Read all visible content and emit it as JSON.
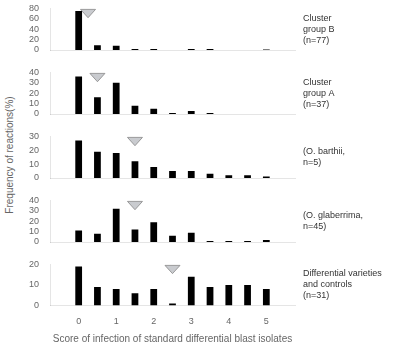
{
  "chart_data": [
    {
      "type": "bar",
      "x": [
        0,
        0.25,
        0.5,
        0.75,
        1,
        1.25,
        1.5,
        1.75,
        2,
        2.25,
        2.5,
        2.75,
        3,
        3.25,
        3.5,
        3.75,
        4,
        4.25,
        4.5,
        4.75,
        5
      ],
      "values": [
        75,
        0,
        9,
        0,
        8,
        0,
        2,
        0,
        2,
        0,
        0,
        0,
        2,
        0,
        2,
        0,
        0,
        0,
        0,
        0,
        1
      ],
      "color": "#000000",
      "mean": 0.25,
      "annotation": "Cluster\ngroup B\n(n=77)",
      "xlim": [
        -0.22,
        5.22
      ],
      "xticks": [
        0,
        1,
        2,
        3,
        4,
        5
      ],
      "ylim": [
        0,
        80
      ],
      "yticks": [
        0,
        20,
        40,
        60,
        80
      ],
      "grid": false,
      "tick_labels": "y"
    },
    {
      "type": "bar",
      "x": [
        0,
        0.25,
        0.5,
        0.75,
        1,
        1.25,
        1.5,
        1.75,
        2,
        2.25,
        2.5,
        2.75,
        3,
        3.25,
        3.5,
        3.75,
        4,
        4.25,
        4.5,
        4.75,
        5
      ],
      "values": [
        36,
        0,
        16,
        0,
        30,
        0,
        8,
        0,
        5,
        0,
        1,
        0,
        3,
        0,
        1,
        0,
        0,
        0,
        0,
        0,
        0
      ],
      "color": "#000000",
      "mean": 0.5,
      "annotation": "Cluster\ngroup A\n(n=37)",
      "xlim": [
        -0.22,
        5.22
      ],
      "xticks": [
        0,
        1,
        2,
        3,
        4,
        5
      ],
      "ylim": [
        0,
        40
      ],
      "yticks": [
        0,
        10,
        20,
        30,
        40
      ],
      "grid": false,
      "tick_labels": "y"
    },
    {
      "type": "bar",
      "x": [
        0,
        0.25,
        0.5,
        0.75,
        1,
        1.25,
        1.5,
        1.75,
        2,
        2.25,
        2.5,
        2.75,
        3,
        3.25,
        3.5,
        3.75,
        4,
        4.25,
        4.5,
        4.75,
        5
      ],
      "values": [
        27,
        0,
        19,
        0,
        18,
        0,
        12,
        0,
        8,
        0,
        5,
        0,
        5,
        0,
        3,
        0,
        2,
        0,
        2,
        0,
        1
      ],
      "color": "#000000",
      "mean": 1.5,
      "annotation": "(O. barthii,\nn=5)",
      "ylabel": "Frequency of reactions(%)",
      "xlim": [
        -0.22,
        5.22
      ],
      "xticks": [
        0,
        1,
        2,
        3,
        4,
        5
      ],
      "ylim": [
        0,
        30
      ],
      "yticks": [
        0,
        10,
        20,
        30
      ],
      "grid": false,
      "tick_labels": "y"
    },
    {
      "type": "bar",
      "x": [
        0,
        0.25,
        0.5,
        0.75,
        1,
        1.25,
        1.5,
        1.75,
        2,
        2.25,
        2.5,
        2.75,
        3,
        3.25,
        3.5,
        3.75,
        4,
        4.25,
        4.5,
        4.75,
        5
      ],
      "values": [
        11,
        0,
        8,
        0,
        32,
        0,
        12,
        0,
        19,
        0,
        6,
        0,
        9,
        0,
        1,
        0,
        1,
        0,
        1,
        0,
        2
      ],
      "color": "#000000",
      "mean": 1.5,
      "annotation": "(O. glaberrima,\nn=45)",
      "xlim": [
        -0.22,
        5.22
      ],
      "xticks": [
        0,
        1,
        2,
        3,
        4,
        5
      ],
      "ylim": [
        0,
        40
      ],
      "yticks": [
        0,
        10,
        20,
        30,
        40
      ],
      "grid": false,
      "tick_labels": "y"
    },
    {
      "type": "bar",
      "x": [
        0,
        0.25,
        0.5,
        0.75,
        1,
        1.25,
        1.5,
        1.75,
        2,
        2.25,
        2.5,
        2.75,
        3,
        3.25,
        3.5,
        3.75,
        4,
        4.25,
        4.5,
        4.75,
        5
      ],
      "values": [
        19,
        0,
        9,
        0,
        8,
        0,
        6,
        0,
        8,
        0,
        1,
        0,
        14,
        0,
        9,
        0,
        10,
        0,
        10,
        0,
        8
      ],
      "color": "#000000",
      "mean": 2.5,
      "annotation": "Differential varieties\nand controls\n(n=31)",
      "xlabel": "Score of infection of standard differential blast isolates",
      "xlim": [
        -0.22,
        5.22
      ],
      "xticks": [
        0,
        1,
        2,
        3,
        4,
        5
      ],
      "ylim": [
        0,
        20
      ],
      "yticks": [
        0,
        10,
        20
      ],
      "grid": false
    }
  ]
}
